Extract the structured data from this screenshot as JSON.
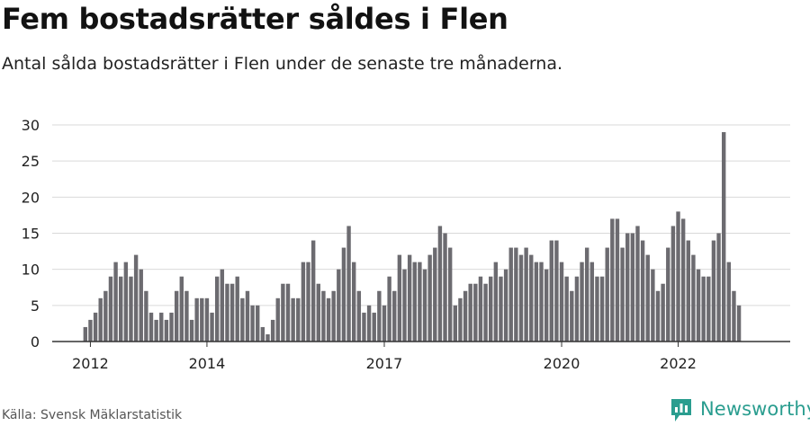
{
  "title": "Fem bostadsrätter såldes i Flen",
  "subtitle": "Antal sålda bostadsrätter i Flen under de senaste tre månaderna.",
  "source": "Källa: Svensk Mäklarstatistik",
  "brand": "Newsworthy",
  "colors": {
    "bar": "#6c6b70",
    "highlight": "#1e9e9a",
    "grid": "#d9d9d9",
    "axis": "#333333",
    "brand": "#2a9d8f"
  },
  "chart_data": {
    "type": "bar",
    "title": "Fem bostadsrätter såldes i Flen",
    "subtitle": "Antal sålda bostadsrätter i Flen under de senaste tre månaderna.",
    "xlabel": "",
    "ylabel": "",
    "ylim": [
      0,
      30
    ],
    "yticks": [
      0,
      5,
      10,
      15,
      20,
      25,
      30
    ],
    "grid": true,
    "legend": "none",
    "x_tick_labels": [
      {
        "label": "2012",
        "index": 1
      },
      {
        "label": "2014",
        "index": 24
      },
      {
        "label": "2017",
        "index": 59
      },
      {
        "label": "2020",
        "index": 94
      },
      {
        "label": "2022",
        "index": 117
      }
    ],
    "values": [
      2,
      3,
      4,
      6,
      7,
      9,
      11,
      9,
      11,
      9,
      12,
      10,
      7,
      4,
      3,
      4,
      3,
      4,
      7,
      9,
      7,
      3,
      6,
      6,
      6,
      4,
      9,
      10,
      8,
      8,
      9,
      6,
      7,
      5,
      5,
      2,
      1,
      3,
      6,
      8,
      8,
      6,
      6,
      11,
      11,
      14,
      8,
      7,
      6,
      7,
      10,
      13,
      16,
      11,
      7,
      4,
      5,
      4,
      7,
      5,
      9,
      7,
      12,
      10,
      12,
      11,
      11,
      10,
      12,
      13,
      16,
      15,
      13,
      5,
      6,
      7,
      8,
      8,
      9,
      8,
      9,
      11,
      9,
      10,
      13,
      13,
      12,
      13,
      12,
      11,
      11,
      10,
      14,
      14,
      11,
      9,
      7,
      9,
      11,
      13,
      11,
      9,
      9,
      13,
      17,
      17,
      13,
      15,
      15,
      16,
      14,
      12,
      10,
      7,
      8,
      13,
      16,
      18,
      17,
      14,
      12,
      10,
      9,
      9,
      14,
      15,
      29,
      11,
      7,
      5
    ],
    "highlight_index": 130,
    "annotation": "5"
  }
}
